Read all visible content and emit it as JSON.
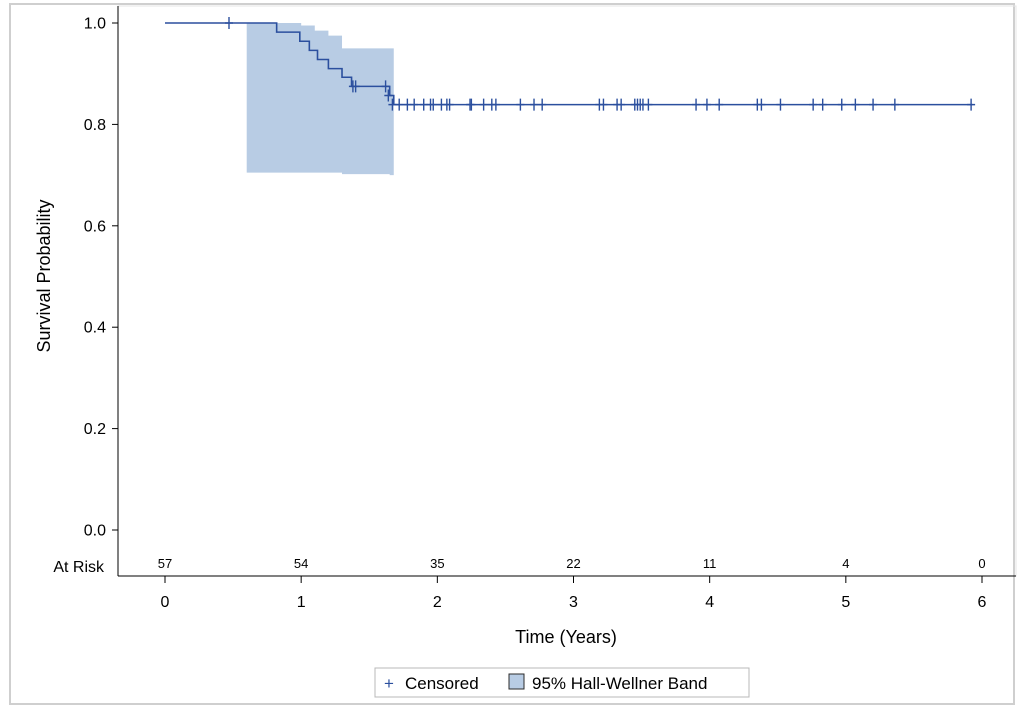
{
  "chart_data": {
    "type": "line",
    "xlabel": "Time (Years)",
    "ylabel": "Survival Probability",
    "xlim": [
      0,
      6
    ],
    "ylim": [
      0,
      1
    ],
    "x_ticks": [
      "0",
      "1",
      "2",
      "3",
      "4",
      "5",
      "6"
    ],
    "y_ticks": [
      "0.0",
      "0.2",
      "0.4",
      "0.6",
      "0.8",
      "1.0"
    ],
    "grid": false,
    "legend_position": "bottom-center",
    "colors": {
      "line": "#2b4f9e",
      "band": "#b8cce4",
      "axis": "#000000",
      "frame": "#cccccc"
    },
    "series": [
      {
        "name": "Survival",
        "step": true,
        "x": [
          0,
          0.6,
          0.82,
          0.92,
          0.99,
          1.06,
          1.12,
          1.2,
          1.3,
          1.37,
          1.52,
          1.65,
          1.68,
          5.93
        ],
        "y": [
          1.0,
          1.0,
          0.982,
          0.982,
          0.964,
          0.946,
          0.928,
          0.91,
          0.893,
          0.875,
          0.875,
          0.857,
          0.839,
          0.839
        ]
      }
    ],
    "band": {
      "name": "95% Hall-Wellner Band",
      "x": [
        0.6,
        0.9,
        1.0,
        1.1,
        1.2,
        1.3,
        1.6,
        1.65,
        1.68
      ],
      "upper": [
        1.0,
        1.0,
        0.995,
        0.985,
        0.975,
        0.95,
        0.95,
        0.95,
        0.95
      ],
      "lower": [
        0.705,
        0.705,
        0.705,
        0.705,
        0.705,
        0.702,
        0.702,
        0.7,
        0.693
      ]
    },
    "censored": {
      "name": "Censored",
      "points": [
        [
          0.47,
          1.0
        ],
        [
          1.38,
          0.875
        ],
        [
          1.4,
          0.875
        ],
        [
          1.62,
          0.875
        ],
        [
          1.64,
          0.857
        ],
        [
          1.67,
          0.839
        ],
        [
          1.72,
          0.839
        ],
        [
          1.78,
          0.839
        ],
        [
          1.83,
          0.839
        ],
        [
          1.9,
          0.839
        ],
        [
          1.95,
          0.839
        ],
        [
          1.97,
          0.839
        ],
        [
          2.03,
          0.839
        ],
        [
          2.07,
          0.839
        ],
        [
          2.09,
          0.839
        ],
        [
          2.24,
          0.839
        ],
        [
          2.25,
          0.839
        ],
        [
          2.34,
          0.839
        ],
        [
          2.4,
          0.839
        ],
        [
          2.43,
          0.839
        ],
        [
          2.61,
          0.839
        ],
        [
          2.71,
          0.839
        ],
        [
          2.77,
          0.839
        ],
        [
          3.19,
          0.839
        ],
        [
          3.22,
          0.839
        ],
        [
          3.32,
          0.839
        ],
        [
          3.35,
          0.839
        ],
        [
          3.45,
          0.839
        ],
        [
          3.47,
          0.839
        ],
        [
          3.49,
          0.839
        ],
        [
          3.51,
          0.839
        ],
        [
          3.55,
          0.839
        ],
        [
          3.9,
          0.839
        ],
        [
          3.98,
          0.839
        ],
        [
          4.07,
          0.839
        ],
        [
          4.35,
          0.839
        ],
        [
          4.38,
          0.839
        ],
        [
          4.52,
          0.839
        ],
        [
          4.76,
          0.839
        ],
        [
          4.83,
          0.839
        ],
        [
          4.97,
          0.839
        ],
        [
          5.07,
          0.839
        ],
        [
          5.2,
          0.839
        ],
        [
          5.36,
          0.839
        ],
        [
          5.92,
          0.839
        ]
      ]
    },
    "at_risk": {
      "label": "At Risk",
      "values": [
        {
          "x": 0,
          "n": "57"
        },
        {
          "x": 1,
          "n": "54"
        },
        {
          "x": 2,
          "n": "35"
        },
        {
          "x": 3,
          "n": "22"
        },
        {
          "x": 4,
          "n": "11"
        },
        {
          "x": 5,
          "n": "4"
        },
        {
          "x": 6,
          "n": "0"
        }
      ]
    },
    "legend": {
      "items": [
        {
          "symbol": "+",
          "label": "Censored"
        },
        {
          "symbol": "band-box",
          "label": "95% Hall-Wellner Band"
        }
      ]
    }
  }
}
